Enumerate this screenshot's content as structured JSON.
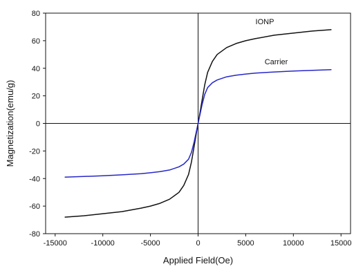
{
  "chart_data": {
    "type": "line",
    "title": "",
    "xlabel": "Applied Field(Oe)",
    "ylabel": "Magnetization(emu/g)",
    "xlim": [
      -16000,
      16000
    ],
    "ylim": [
      -80,
      80
    ],
    "xticks": [
      -15000,
      -10000,
      -5000,
      0,
      5000,
      10000,
      15000
    ],
    "yticks": [
      -80,
      -60,
      -40,
      -20,
      0,
      20,
      40,
      60,
      80
    ],
    "grid": false,
    "zero_lines": true,
    "legend": "none",
    "series": [
      {
        "name": "IONP",
        "color": "#111111",
        "x": [
          -14000,
          -12000,
          -10000,
          -8000,
          -6000,
          -5000,
          -4000,
          -3000,
          -2000,
          -1500,
          -1000,
          -700,
          -400,
          -200,
          0,
          200,
          400,
          700,
          1000,
          1500,
          2000,
          3000,
          4000,
          5000,
          6000,
          8000,
          10000,
          12000,
          14000
        ],
        "y": [
          -68,
          -67,
          -65.5,
          -64,
          -61.5,
          -60,
          -58,
          -55,
          -50,
          -45,
          -37,
          -28,
          -16,
          -8,
          0,
          8,
          16,
          28,
          37,
          45,
          50,
          55,
          58,
          60,
          61.5,
          64,
          65.5,
          67,
          68
        ]
      },
      {
        "name": "Carrier",
        "color": "#2626c8",
        "x": [
          -14000,
          -12000,
          -10000,
          -8000,
          -6000,
          -5000,
          -4000,
          -3000,
          -2000,
          -1500,
          -1000,
          -700,
          -400,
          -200,
          0,
          200,
          400,
          700,
          1000,
          1500,
          2000,
          3000,
          4000,
          5000,
          6000,
          8000,
          10000,
          12000,
          14000
        ],
        "y": [
          -39,
          -38.5,
          -38,
          -37.3,
          -36.5,
          -35.8,
          -35,
          -33.8,
          -31.5,
          -29.5,
          -26,
          -21,
          -13,
          -6.5,
          0,
          6.5,
          13,
          21,
          26,
          29.5,
          31.5,
          33.8,
          35,
          35.8,
          36.5,
          37.3,
          38,
          38.5,
          39
        ]
      }
    ],
    "annotations": [
      {
        "text": "IONP",
        "x": 7000,
        "y": 72
      },
      {
        "text": "Carrier",
        "x": 8200,
        "y": 43
      }
    ]
  }
}
